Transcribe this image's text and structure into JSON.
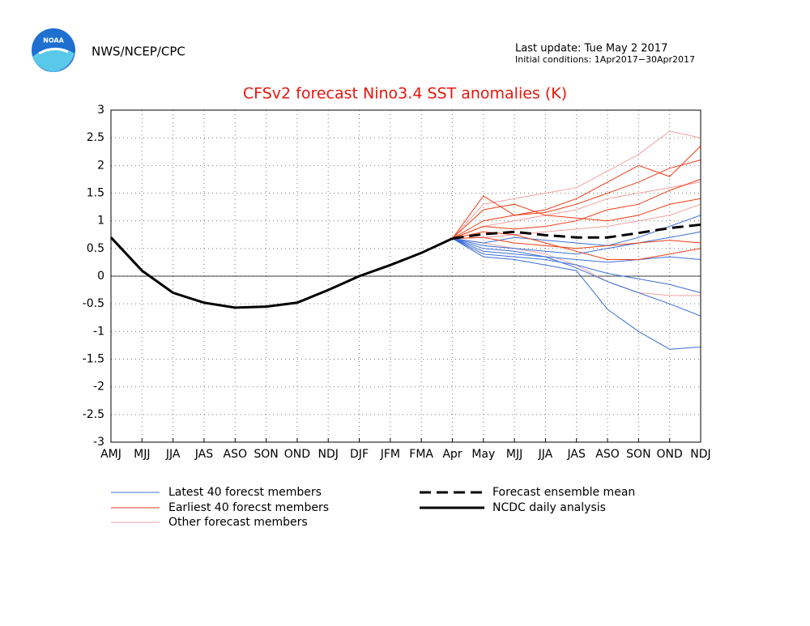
{
  "header": {
    "agency": "NWS/NCEP/CPC",
    "logo_text": "NOAA",
    "last_update": "Last update: Tue May 2 2017",
    "initial_conditions": "Initial conditions: 1Apr2017−30Apr2017"
  },
  "chart_data": {
    "type": "line",
    "title": "CFSv2 forecast Nino3.4 SST anomalies (K)",
    "categories": [
      "AMJ",
      "MJJ",
      "JJA",
      "JAS",
      "ASO",
      "SON",
      "OND",
      "NDJ",
      "DJF",
      "JFM",
      "FMA",
      "Apr",
      "May",
      "MJJ",
      "JJA",
      "JAS",
      "ASO",
      "SON",
      "OND",
      "NDJ"
    ],
    "ylim": [
      -3,
      3
    ],
    "yticks": [
      3,
      2.5,
      2,
      1.5,
      1,
      0.5,
      0,
      -0.5,
      -1,
      -1.5,
      -2,
      -2.5,
      -3
    ],
    "grid": true,
    "member_groups": [
      {
        "name": "Other forecast members",
        "color": "#f2a0a0",
        "members": [
          [
            null,
            null,
            null,
            null,
            null,
            null,
            null,
            null,
            null,
            null,
            null,
            0.68,
            1.3,
            1.4,
            1.5,
            1.6,
            1.9,
            2.2,
            2.62,
            2.5
          ],
          [
            null,
            null,
            null,
            null,
            null,
            null,
            null,
            null,
            null,
            null,
            null,
            0.68,
            0.6,
            0.5,
            0.4,
            0.2,
            -0.1,
            -0.3,
            -0.35,
            -0.35
          ],
          [
            null,
            null,
            null,
            null,
            null,
            null,
            null,
            null,
            null,
            null,
            null,
            0.68,
            0.9,
            1.0,
            1.1,
            1.2,
            1.4,
            1.5,
            1.6,
            1.7
          ],
          [
            null,
            null,
            null,
            null,
            null,
            null,
            null,
            null,
            null,
            null,
            null,
            0.68,
            0.7,
            0.75,
            0.8,
            0.85,
            0.9,
            1.0,
            1.1,
            1.3
          ]
        ]
      },
      {
        "name": "Latest 40 forecst members",
        "color": "#3a6fd8",
        "members": [
          [
            null,
            null,
            null,
            null,
            null,
            null,
            null,
            null,
            null,
            null,
            null,
            0.68,
            0.45,
            0.4,
            0.35,
            0.3,
            0.25,
            0.3,
            0.35,
            0.3
          ],
          [
            null,
            null,
            null,
            null,
            null,
            null,
            null,
            null,
            null,
            null,
            null,
            0.68,
            0.35,
            0.3,
            0.2,
            0.1,
            -0.6,
            -1.0,
            -1.32,
            -1.28
          ],
          [
            null,
            null,
            null,
            null,
            null,
            null,
            null,
            null,
            null,
            null,
            null,
            0.68,
            0.5,
            0.45,
            0.35,
            0.15,
            -0.1,
            -0.3,
            -0.5,
            -0.72
          ],
          [
            null,
            null,
            null,
            null,
            null,
            null,
            null,
            null,
            null,
            null,
            null,
            0.68,
            0.6,
            0.7,
            0.65,
            0.6,
            0.55,
            0.7,
            0.9,
            1.1
          ],
          [
            null,
            null,
            null,
            null,
            null,
            null,
            null,
            null,
            null,
            null,
            null,
            0.68,
            0.4,
            0.35,
            0.3,
            0.2,
            0.05,
            -0.05,
            -0.15,
            -0.3
          ],
          [
            null,
            null,
            null,
            null,
            null,
            null,
            null,
            null,
            null,
            null,
            null,
            0.68,
            0.55,
            0.5,
            0.45,
            0.4,
            0.5,
            0.6,
            0.7,
            0.8
          ]
        ]
      },
      {
        "name": "Earliest 40 forecst members",
        "color": "#f03c14",
        "members": [
          [
            null,
            null,
            null,
            null,
            null,
            null,
            null,
            null,
            null,
            null,
            null,
            0.68,
            1.45,
            1.1,
            1.2,
            1.4,
            1.7,
            2.0,
            1.8,
            2.35
          ],
          [
            null,
            null,
            null,
            null,
            null,
            null,
            null,
            null,
            null,
            null,
            null,
            0.68,
            1.0,
            1.1,
            1.15,
            1.3,
            1.5,
            1.7,
            1.95,
            2.1
          ],
          [
            null,
            null,
            null,
            null,
            null,
            null,
            null,
            null,
            null,
            null,
            null,
            0.68,
            0.9,
            0.85,
            0.9,
            1.0,
            1.2,
            1.3,
            1.55,
            1.75
          ],
          [
            null,
            null,
            null,
            null,
            null,
            null,
            null,
            null,
            null,
            null,
            null,
            0.68,
            0.7,
            0.6,
            0.55,
            0.5,
            0.55,
            0.6,
            0.65,
            0.6
          ],
          [
            null,
            null,
            null,
            null,
            null,
            null,
            null,
            null,
            null,
            null,
            null,
            0.68,
            1.2,
            1.3,
            1.1,
            1.05,
            1.0,
            1.1,
            1.3,
            1.4
          ],
          [
            null,
            null,
            null,
            null,
            null,
            null,
            null,
            null,
            null,
            null,
            null,
            0.68,
            0.8,
            0.75,
            0.6,
            0.45,
            0.3,
            0.3,
            0.4,
            0.5
          ]
        ]
      }
    ],
    "series": [
      {
        "name": "Forecast ensemble mean",
        "color": "#000000",
        "dashed": true,
        "values": [
          null,
          null,
          null,
          null,
          null,
          null,
          null,
          null,
          null,
          null,
          null,
          0.68,
          0.76,
          0.8,
          0.74,
          0.7,
          0.7,
          0.78,
          0.87,
          0.93
        ]
      },
      {
        "name": "NCDC daily analysis",
        "color": "#000000",
        "dashed": false,
        "values": [
          0.7,
          0.1,
          -0.3,
          -0.48,
          -0.57,
          -0.55,
          -0.48,
          -0.25,
          0.0,
          0.2,
          0.42,
          0.68,
          null,
          null,
          null,
          null,
          null,
          null,
          null,
          null
        ]
      }
    ]
  }
}
